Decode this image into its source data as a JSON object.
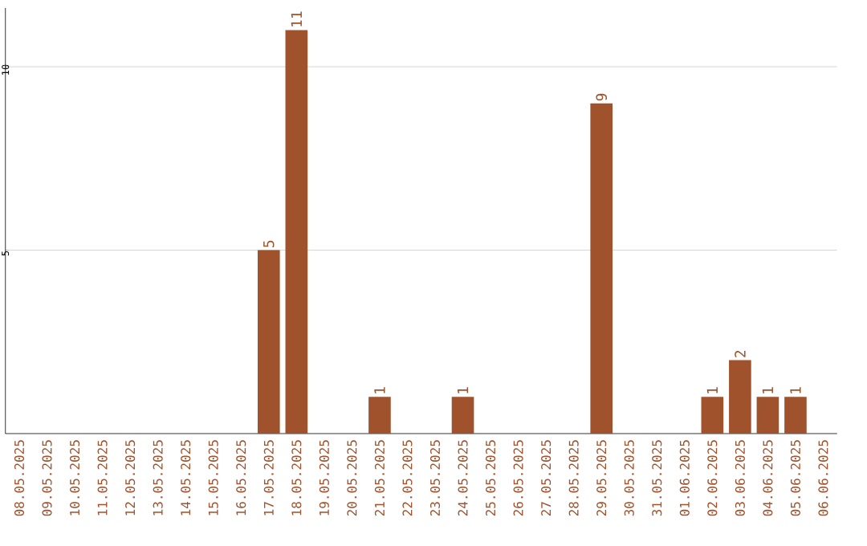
{
  "chart_data": {
    "type": "bar",
    "categories": [
      "08.05.2025",
      "09.05.2025",
      "10.05.2025",
      "11.05.2025",
      "12.05.2025",
      "13.05.2025",
      "14.05.2025",
      "15.05.2025",
      "16.05.2025",
      "17.05.2025",
      "18.05.2025",
      "19.05.2025",
      "20.05.2025",
      "21.05.2025",
      "22.05.2025",
      "23.05.2025",
      "24.05.2025",
      "25.05.2025",
      "26.05.2025",
      "27.05.2025",
      "28.05.2025",
      "29.05.2025",
      "30.05.2025",
      "31.05.2025",
      "01.06.2025",
      "02.06.2025",
      "03.06.2025",
      "04.06.2025",
      "05.06.2025",
      "06.06.2025"
    ],
    "values": [
      0,
      0,
      0,
      0,
      0,
      0,
      0,
      0,
      0,
      5,
      11,
      0,
      0,
      1,
      0,
      0,
      1,
      0,
      0,
      0,
      0,
      9,
      0,
      0,
      0,
      1,
      2,
      1,
      1,
      0
    ],
    "value_labels": [
      null,
      null,
      null,
      null,
      null,
      null,
      null,
      null,
      null,
      "5",
      "11",
      null,
      null,
      "1",
      null,
      null,
      "1",
      null,
      null,
      null,
      null,
      "9",
      null,
      null,
      null,
      "1",
      "2",
      "1",
      "1",
      null
    ],
    "color": "#a0522d",
    "ylim": [
      0,
      11.6
    ],
    "yticks": [
      5,
      10
    ],
    "grid": "y"
  }
}
